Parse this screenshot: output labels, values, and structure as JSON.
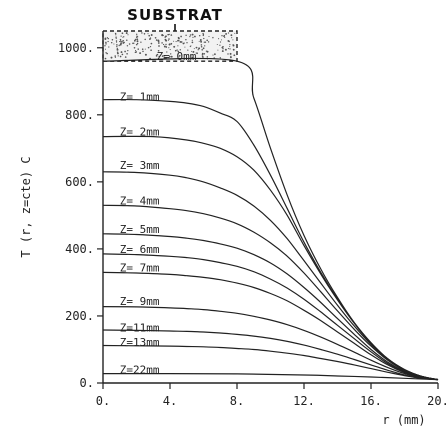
{
  "chart_data": {
    "type": "line",
    "title": "SUBSTRAT",
    "xlabel": "r  (mm)",
    "ylabel": "T (r, z=cte) C",
    "xlim": [
      0,
      20
    ],
    "ylim": [
      0,
      1050
    ],
    "x_ticks": [
      "0.",
      "4.",
      "8.",
      "12.",
      "16.",
      "20."
    ],
    "y_ticks": [
      "0.",
      "200.",
      "400.",
      "600.",
      "800.",
      "1000."
    ],
    "grid": false,
    "colors": {
      "line": "#222222",
      "substrate_fill": "#f2f2f2",
      "dots": "#555555"
    },
    "substrate": {
      "r_from": 0,
      "r_to": 8,
      "T_from": 960,
      "T_to": 1050
    },
    "series": [
      {
        "name": "Z= 0mm",
        "label_at": [
          3.2,
          975
        ],
        "points": [
          [
            0,
            960
          ],
          [
            8,
            960
          ],
          [
            9,
            850
          ],
          [
            10,
            700
          ],
          [
            11,
            560
          ],
          [
            12,
            440
          ],
          [
            13,
            340
          ],
          [
            14,
            255
          ],
          [
            15,
            180
          ],
          [
            16,
            120
          ],
          [
            17,
            72
          ],
          [
            18,
            40
          ],
          [
            19,
            20
          ],
          [
            20,
            10
          ]
        ]
      },
      {
        "name": "Z= 1mm",
        "label_at": [
          1.0,
          855
        ],
        "points": [
          [
            0,
            845
          ],
          [
            2,
            845
          ],
          [
            4,
            840
          ],
          [
            5,
            835
          ],
          [
            6,
            825
          ],
          [
            7,
            805
          ],
          [
            8,
            780
          ],
          [
            9,
            710
          ],
          [
            10,
            620
          ],
          [
            11,
            520
          ],
          [
            12,
            420
          ],
          [
            13,
            330
          ],
          [
            14,
            250
          ],
          [
            15,
            180
          ],
          [
            16,
            120
          ],
          [
            17,
            72
          ],
          [
            18,
            40
          ],
          [
            19,
            20
          ],
          [
            20,
            10
          ]
        ]
      },
      {
        "name": "Z= 2mm",
        "label_at": [
          1.0,
          750
        ],
        "points": [
          [
            0,
            735
          ],
          [
            3,
            735
          ],
          [
            5,
            725
          ],
          [
            6,
            715
          ],
          [
            7,
            700
          ],
          [
            8,
            675
          ],
          [
            9,
            635
          ],
          [
            10,
            575
          ],
          [
            11,
            500
          ],
          [
            12,
            410
          ],
          [
            13,
            325
          ],
          [
            14,
            248
          ],
          [
            15,
            178
          ],
          [
            16,
            118
          ],
          [
            17,
            72
          ],
          [
            18,
            40
          ],
          [
            19,
            20
          ],
          [
            20,
            10
          ]
        ]
      },
      {
        "name": "Z= 3mm",
        "label_at": [
          1.0,
          650
        ],
        "points": [
          [
            0,
            630
          ],
          [
            2,
            628
          ],
          [
            4,
            620
          ],
          [
            5,
            612
          ],
          [
            6,
            600
          ],
          [
            7,
            582
          ],
          [
            8,
            560
          ],
          [
            9,
            528
          ],
          [
            10,
            485
          ],
          [
            11,
            430
          ],
          [
            12,
            365
          ],
          [
            13,
            298
          ],
          [
            14,
            232
          ],
          [
            15,
            170
          ],
          [
            16,
            115
          ],
          [
            17,
            70
          ],
          [
            18,
            40
          ],
          [
            19,
            20
          ],
          [
            20,
            10
          ]
        ]
      },
      {
        "name": "Z= 4mm",
        "label_at": [
          1.0,
          545
        ],
        "points": [
          [
            0,
            530
          ],
          [
            2,
            528
          ],
          [
            4,
            520
          ],
          [
            5,
            514
          ],
          [
            6,
            505
          ],
          [
            7,
            492
          ],
          [
            8,
            475
          ],
          [
            9,
            450
          ],
          [
            10,
            418
          ],
          [
            11,
            378
          ],
          [
            12,
            328
          ],
          [
            13,
            272
          ],
          [
            14,
            215
          ],
          [
            15,
            160
          ],
          [
            16,
            110
          ],
          [
            17,
            68
          ],
          [
            18,
            38
          ],
          [
            19,
            20
          ],
          [
            20,
            10
          ]
        ]
      },
      {
        "name": "Z= 5mm",
        "label_at": [
          1.0,
          460
        ],
        "points": [
          [
            0,
            445
          ],
          [
            2,
            443
          ],
          [
            4,
            437
          ],
          [
            5,
            432
          ],
          [
            6,
            425
          ],
          [
            7,
            415
          ],
          [
            8,
            402
          ],
          [
            9,
            383
          ],
          [
            10,
            358
          ],
          [
            11,
            325
          ],
          [
            12,
            285
          ],
          [
            13,
            240
          ],
          [
            14,
            192
          ],
          [
            15,
            145
          ],
          [
            16,
            100
          ],
          [
            17,
            62
          ],
          [
            18,
            35
          ],
          [
            19,
            18
          ],
          [
            20,
            10
          ]
        ]
      },
      {
        "name": "Z= 6mm",
        "label_at": [
          1.0,
          400
        ],
        "points": [
          [
            0,
            385
          ],
          [
            2,
            383
          ],
          [
            4,
            378
          ],
          [
            5,
            374
          ],
          [
            6,
            368
          ],
          [
            7,
            359
          ],
          [
            8,
            348
          ],
          [
            9,
            332
          ],
          [
            10,
            310
          ],
          [
            11,
            283
          ],
          [
            12,
            250
          ],
          [
            13,
            212
          ],
          [
            14,
            172
          ],
          [
            15,
            132
          ],
          [
            16,
            93
          ],
          [
            17,
            58
          ],
          [
            18,
            33
          ],
          [
            19,
            18
          ],
          [
            20,
            10
          ]
        ]
      },
      {
        "name": "Z= 7mm",
        "label_at": [
          1.0,
          345
        ],
        "points": [
          [
            0,
            330
          ],
          [
            2,
            328
          ],
          [
            4,
            324
          ],
          [
            5,
            320
          ],
          [
            6,
            315
          ],
          [
            7,
            308
          ],
          [
            8,
            298
          ],
          [
            9,
            285
          ],
          [
            10,
            267
          ],
          [
            11,
            245
          ],
          [
            12,
            217
          ],
          [
            13,
            186
          ],
          [
            14,
            152
          ],
          [
            15,
            118
          ],
          [
            16,
            84
          ],
          [
            17,
            54
          ],
          [
            18,
            31
          ],
          [
            19,
            17
          ],
          [
            20,
            10
          ]
        ]
      },
      {
        "name": "Z= 9mm",
        "label_at": [
          1.0,
          245
        ],
        "points": [
          [
            0,
            228
          ],
          [
            2,
            227
          ],
          [
            4,
            224
          ],
          [
            5,
            222
          ],
          [
            6,
            219
          ],
          [
            7,
            214
          ],
          [
            8,
            208
          ],
          [
            9,
            199
          ],
          [
            10,
            188
          ],
          [
            11,
            174
          ],
          [
            12,
            157
          ],
          [
            13,
            137
          ],
          [
            14,
            115
          ],
          [
            15,
            92
          ],
          [
            16,
            68
          ],
          [
            17,
            46
          ],
          [
            18,
            28
          ],
          [
            19,
            15
          ],
          [
            20,
            10
          ]
        ]
      },
      {
        "name": "Z=11mm",
        "label_at": [
          1.0,
          165
        ],
        "points": [
          [
            0,
            158
          ],
          [
            2,
            157
          ],
          [
            4,
            155
          ],
          [
            5,
            154
          ],
          [
            6,
            152
          ],
          [
            7,
            149
          ],
          [
            8,
            145
          ],
          [
            9,
            140
          ],
          [
            10,
            133
          ],
          [
            11,
            124
          ],
          [
            12,
            113
          ],
          [
            13,
            100
          ],
          [
            14,
            86
          ],
          [
            15,
            70
          ],
          [
            16,
            54
          ],
          [
            17,
            38
          ],
          [
            18,
            24
          ],
          [
            19,
            14
          ],
          [
            20,
            10
          ]
        ]
      },
      {
        "name": "Z=13mm",
        "label_at": [
          1.0,
          122
        ],
        "points": [
          [
            0,
            112
          ],
          [
            2,
            111
          ],
          [
            4,
            110
          ],
          [
            5,
            109
          ],
          [
            6,
            108
          ],
          [
            7,
            106
          ],
          [
            8,
            103
          ],
          [
            9,
            100
          ],
          [
            10,
            95
          ],
          [
            11,
            89
          ],
          [
            12,
            82
          ],
          [
            13,
            73
          ],
          [
            14,
            64
          ],
          [
            15,
            54
          ],
          [
            16,
            43
          ],
          [
            17,
            32
          ],
          [
            18,
            22
          ],
          [
            19,
            14
          ],
          [
            20,
            10
          ]
        ]
      },
      {
        "name": "Z=22mm",
        "label_at": [
          1.0,
          40
        ],
        "points": [
          [
            0,
            28
          ],
          [
            4,
            28
          ],
          [
            8,
            27
          ],
          [
            12,
            24
          ],
          [
            14,
            21
          ],
          [
            16,
            18
          ],
          [
            18,
            14
          ],
          [
            20,
            10
          ]
        ]
      }
    ]
  }
}
